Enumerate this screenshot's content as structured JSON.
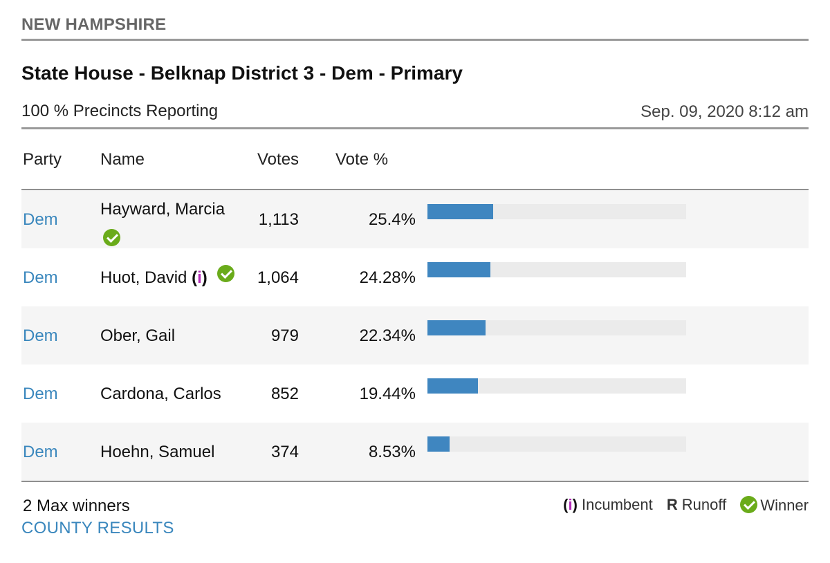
{
  "state": "NEW HAMPSHIRE",
  "race_title": "State House - Belknap District 3 - Dem - Primary",
  "precincts_reporting": "100 % Precincts Reporting",
  "updated": "Sep. 09, 2020 8:12 am",
  "columns": {
    "party": "Party",
    "name": "Name",
    "votes": "Votes",
    "pct": "Vote %"
  },
  "candidates": [
    {
      "party": "Dem",
      "name": "Hayward, Marcia",
      "votes": "1,113",
      "pct": "25.4%",
      "share": 25.4,
      "winner": true,
      "incumbent": false
    },
    {
      "party": "Dem",
      "name": "Huot, David",
      "votes": "1,064",
      "pct": "24.28%",
      "share": 24.28,
      "winner": true,
      "incumbent": true
    },
    {
      "party": "Dem",
      "name": "Ober, Gail",
      "votes": "979",
      "pct": "22.34%",
      "share": 22.34,
      "winner": false,
      "incumbent": false
    },
    {
      "party": "Dem",
      "name": "Cardona, Carlos",
      "votes": "852",
      "pct": "19.44%",
      "share": 19.44,
      "winner": false,
      "incumbent": false
    },
    {
      "party": "Dem",
      "name": "Hoehn, Samuel",
      "votes": "374",
      "pct": "8.53%",
      "share": 8.53,
      "winner": false,
      "incumbent": false
    }
  ],
  "incumbent_marker": "i",
  "max_winners": "2 Max winners",
  "county_results": "COUNTY RESULTS",
  "legend": {
    "incumbent_label": "Incumbent",
    "runoff_marker": "R",
    "runoff_label": "Runoff",
    "winner_label": "Winner",
    "winner_icon": "check-circle-icon"
  },
  "colors": {
    "party_link": "#3a87bd",
    "bar": "#3f86c0",
    "winner": "#6aab1a",
    "incumbent": "#b229b6"
  }
}
